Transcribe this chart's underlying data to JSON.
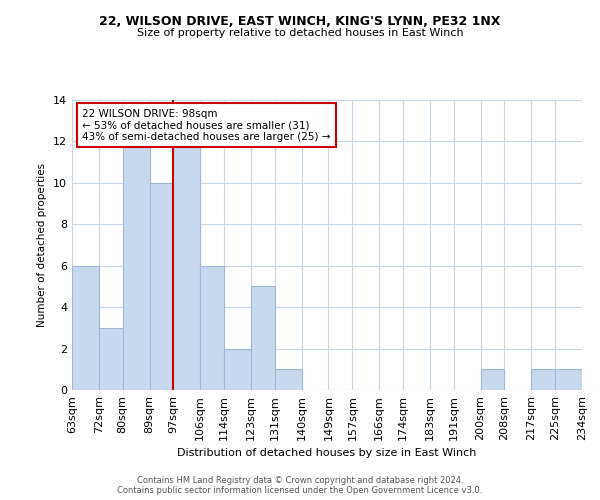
{
  "title_line1": "22, WILSON DRIVE, EAST WINCH, KING'S LYNN, PE32 1NX",
  "title_line2": "Size of property relative to detached houses in East Winch",
  "xlabel": "Distribution of detached houses by size in East Winch",
  "ylabel": "Number of detached properties",
  "bin_edges": [
    63,
    72,
    80,
    89,
    97,
    106,
    114,
    123,
    131,
    140,
    149,
    157,
    166,
    174,
    183,
    191,
    200,
    208,
    217,
    225,
    234
  ],
  "bin_labels": [
    "63sqm",
    "72sqm",
    "80sqm",
    "89sqm",
    "97sqm",
    "106sqm",
    "114sqm",
    "123sqm",
    "131sqm",
    "140sqm",
    "149sqm",
    "157sqm",
    "166sqm",
    "174sqm",
    "183sqm",
    "191sqm",
    "200sqm",
    "208sqm",
    "217sqm",
    "225sqm",
    "234sqm"
  ],
  "counts": [
    6,
    3,
    12,
    10,
    12,
    6,
    2,
    5,
    1,
    0,
    0,
    0,
    0,
    0,
    0,
    0,
    1,
    0,
    1,
    1
  ],
  "bar_color": "#c9d9ed",
  "bar_edge_color": "#a0b8d8",
  "vline_x": 97,
  "vline_color": "#cc0000",
  "annotation_text": "22 WILSON DRIVE: 98sqm\n← 53% of detached houses are smaller (31)\n43% of semi-detached houses are larger (25) →",
  "annotation_box_edge": "#cc0000",
  "ylim": [
    0,
    14
  ],
  "yticks": [
    0,
    2,
    4,
    6,
    8,
    10,
    12,
    14
  ],
  "footer_line1": "Contains HM Land Registry data © Crown copyright and database right 2024.",
  "footer_line2": "Contains public sector information licensed under the Open Government Licence v3.0.",
  "background_color": "#ffffff",
  "grid_color": "#c8d8e8"
}
